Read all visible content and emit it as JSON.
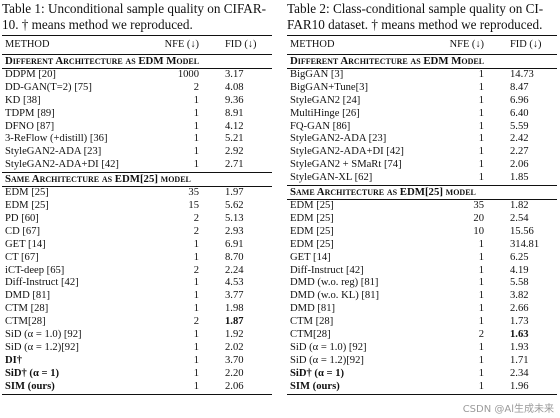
{
  "left": {
    "caption": "Table 1: Unconditional sample quality on CIFAR-\n10. † means method we reproduced.",
    "headers": {
      "method": "METHOD",
      "nfe": "NFE (↓)",
      "fid": "FID (↓)"
    },
    "section1": "Different Architecture as EDM Model",
    "rows1": [
      {
        "method": "DDPM [20]",
        "nfe": "1000",
        "fid": "3.17"
      },
      {
        "method": "DD-GAN(T=2) [75]",
        "nfe": "2",
        "fid": "4.08"
      },
      {
        "method": "KD [38]",
        "nfe": "1",
        "fid": "9.36"
      },
      {
        "method": "TDPM [89]",
        "nfe": "1",
        "fid": "8.91"
      },
      {
        "method": "DFNO [87]",
        "nfe": "1",
        "fid": "4.12"
      },
      {
        "method": "3-ReFlow (+distill) [36]",
        "nfe": "1",
        "fid": "5.21"
      },
      {
        "method": "StyleGAN2-ADA [23]",
        "nfe": "1",
        "fid": "2.92"
      },
      {
        "method": "StyleGAN2-ADA+DI [42]",
        "nfe": "1",
        "fid": "2.71"
      }
    ],
    "section2": "Same Architecture as EDM[25] model",
    "rows2": [
      {
        "method": "EDM [25]",
        "nfe": "35",
        "fid": "1.97"
      },
      {
        "method": "EDM [25]",
        "nfe": "15",
        "fid": "5.62"
      },
      {
        "method": "PD [60]",
        "nfe": "2",
        "fid": "5.13"
      },
      {
        "method": "CD [67]",
        "nfe": "2",
        "fid": "2.93"
      },
      {
        "method": "GET [14]",
        "nfe": "1",
        "fid": "6.91"
      },
      {
        "method": "CT [67]",
        "nfe": "1",
        "fid": "8.70"
      },
      {
        "method": "iCT-deep [65]",
        "nfe": "2",
        "fid": "2.24"
      },
      {
        "method": "Diff-Instruct [42]",
        "nfe": "1",
        "fid": "4.53"
      },
      {
        "method": "DMD [81]",
        "nfe": "1",
        "fid": "3.77"
      },
      {
        "method": "CTM [28]",
        "nfe": "1",
        "fid": "1.98"
      },
      {
        "method": "CTM[28]",
        "nfe": "2",
        "fid": "1.87"
      },
      {
        "method": "SiD (α = 1.0) [92]",
        "nfe": "1",
        "fid": "1.92"
      },
      {
        "method": "SiD (α = 1.2)[92]",
        "nfe": "1",
        "fid": "2.02"
      },
      {
        "method": "DI†",
        "nfe": "1",
        "fid": "3.70"
      },
      {
        "method": "SiD† (α = 1)",
        "nfe": "1",
        "fid": "2.20"
      },
      {
        "method": "SIM (ours)",
        "nfe": "1",
        "fid": "2.06"
      }
    ]
  },
  "right": {
    "caption": "Table 2: Class-conditional sample quality on CI-\nFAR10 dataset. † means method we reproduced.",
    "headers": {
      "method": "METHOD",
      "nfe": "NFE (↓)",
      "fid": "FID (↓)"
    },
    "section1": "Different Architecture as EDM Model",
    "rows1": [
      {
        "method": "BigGAN [3]",
        "nfe": "1",
        "fid": "14.73"
      },
      {
        "method": "BigGAN+Tune[3]",
        "nfe": "1",
        "fid": "8.47"
      },
      {
        "method": "StyleGAN2 [24]",
        "nfe": "1",
        "fid": "6.96"
      },
      {
        "method": "MultiHinge [26]",
        "nfe": "1",
        "fid": "6.40"
      },
      {
        "method": "FQ-GAN [86]",
        "nfe": "1",
        "fid": "5.59"
      },
      {
        "method": "StyleGAN2-ADA [23]",
        "nfe": "1",
        "fid": "2.42"
      },
      {
        "method": "StyleGAN2-ADA+DI [42]",
        "nfe": "1",
        "fid": "2.27"
      },
      {
        "method": "StyleGAN2 + SMaRt [74]",
        "nfe": "1",
        "fid": "2.06"
      },
      {
        "method": "StyleGAN-XL [62]",
        "nfe": "1",
        "fid": "1.85"
      }
    ],
    "section2": "Same Architecture as EDM[25] model",
    "rows2": [
      {
        "method": "EDM [25]",
        "nfe": "35",
        "fid": "1.82"
      },
      {
        "method": "EDM [25]",
        "nfe": "20",
        "fid": "2.54"
      },
      {
        "method": "EDM [25]",
        "nfe": "10",
        "fid": "15.56"
      },
      {
        "method": "EDM [25]",
        "nfe": "1",
        "fid": "314.81"
      },
      {
        "method": "GET [14]",
        "nfe": "1",
        "fid": "6.25"
      },
      {
        "method": "Diff-Instruct [42]",
        "nfe": "1",
        "fid": "4.19"
      },
      {
        "method": "DMD (w.o. reg) [81]",
        "nfe": "1",
        "fid": "5.58"
      },
      {
        "method": "DMD (w.o. KL) [81]",
        "nfe": "1",
        "fid": "3.82"
      },
      {
        "method": "DMD [81]",
        "nfe": "1",
        "fid": "2.66"
      },
      {
        "method": "CTM [28]",
        "nfe": "1",
        "fid": "1.73"
      },
      {
        "method": "CTM[28]",
        "nfe": "2",
        "fid": "1.63"
      },
      {
        "method": "SiD (α = 1.0) [92]",
        "nfe": "1",
        "fid": "1.93"
      },
      {
        "method": "SiD (α = 1.2)[92]",
        "nfe": "1",
        "fid": "1.71"
      },
      {
        "method": "SiD† (α = 1)",
        "nfe": "1",
        "fid": "2.34"
      },
      {
        "method": "SIM (ours)",
        "nfe": "1",
        "fid": "1.96"
      }
    ]
  },
  "watermark": "CSDN @Al生成未来"
}
